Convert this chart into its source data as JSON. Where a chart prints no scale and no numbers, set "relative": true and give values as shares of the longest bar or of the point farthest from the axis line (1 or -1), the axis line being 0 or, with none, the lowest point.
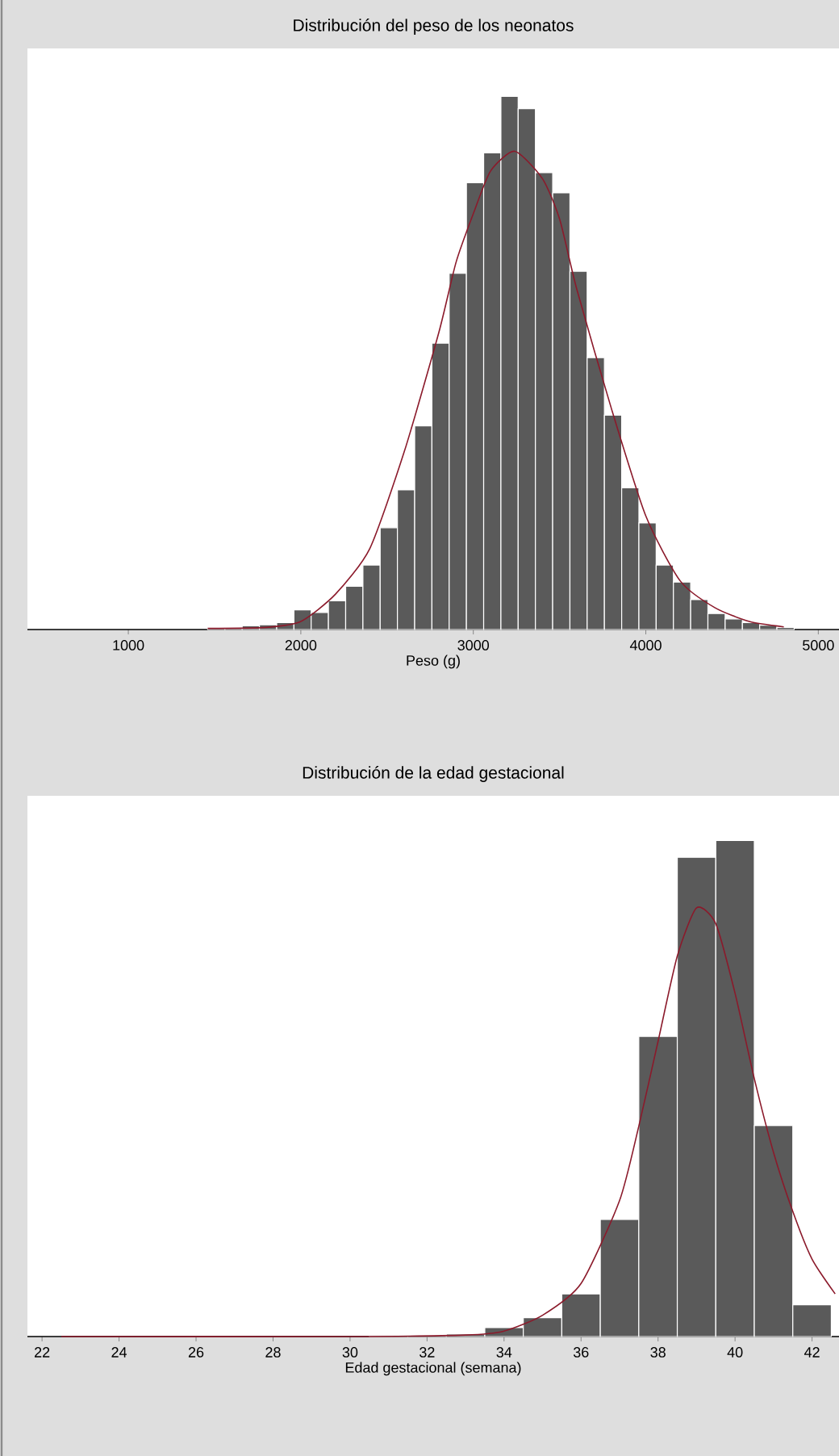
{
  "chart_data": [
    {
      "type": "histogram",
      "title": "Distribución del peso de los neonatos",
      "xlabel": "Peso (g)",
      "relative": true,
      "xlim": [
        415,
        5120
      ],
      "xticks": [
        1000,
        2000,
        3000,
        4000,
        5000
      ],
      "series": [
        {
          "color": "#5a5a5a",
          "bins": [
            1460,
            1560,
            1660,
            1760,
            1860,
            1960,
            2060,
            2160,
            2260,
            2360,
            2460,
            2560,
            2660,
            2760,
            2860,
            2960,
            3060,
            3160,
            3260,
            3360,
            3460,
            3560,
            3660,
            3760,
            3860,
            3960,
            4060,
            4160,
            4260,
            4360,
            4460,
            4560,
            4660,
            4760,
            4860
          ],
          "values": [
            0.004,
            0.004,
            0.007,
            0.009,
            0.013,
            0.037,
            0.032,
            0.054,
            0.081,
            0.121,
            0.191,
            0.262,
            0.382,
            0.537,
            0.668,
            0.838,
            0.894,
            1,
            0.977,
            0.857,
            0.819,
            0.672,
            0.51,
            0.402,
            0.266,
            0.2,
            0.121,
            0.089,
            0.056,
            0.03,
            0.02,
            0.013,
            0.008,
            0.004
          ]
        },
        {
          "type": "line",
          "color": "#8b1a2b",
          "x": [
            1460,
            1800,
            2000,
            2200,
            2400,
            2600,
            2800,
            2900,
            3000,
            3100,
            3240,
            3400,
            3500,
            3600,
            3800,
            4000,
            4200,
            4400,
            4600,
            4800
          ],
          "values": [
            0.002,
            0.004,
            0.015,
            0.066,
            0.152,
            0.334,
            0.557,
            0.689,
            0.78,
            0.86,
            0.897,
            0.846,
            0.77,
            0.638,
            0.415,
            0.213,
            0.091,
            0.041,
            0.015,
            0.005
          ]
        }
      ]
    },
    {
      "type": "histogram",
      "title": "Distribución de la edad gestacional",
      "xlabel": "Edad gestacional (semana)",
      "relative": true,
      "xlim": [
        21.62,
        42.7
      ],
      "xticks": [
        22,
        24,
        26,
        28,
        30,
        32,
        34,
        36,
        38,
        40,
        42
      ],
      "series": [
        {
          "color": "#5a5a5a",
          "bins": [
            30.5,
            31.5,
            32.5,
            33.5,
            34.5,
            35.5,
            36.5,
            37.5,
            38.5,
            39.5,
            40.5,
            41.5,
            42.5
          ],
          "values": [
            0.002,
            0.002,
            0.005,
            0.018,
            0.038,
            0.086,
            0.236,
            0.605,
            0.966,
            1,
            0.425,
            0.064
          ]
        },
        {
          "type": "line",
          "color": "#8b1a2b",
          "x": [
            22.5,
            30,
            33,
            34,
            35,
            36,
            37,
            37.5,
            38,
            38.5,
            39,
            39.5,
            40,
            40.5,
            41,
            41.5,
            42,
            42.6
          ],
          "values": [
            0,
            0,
            0.003,
            0.011,
            0.043,
            0.107,
            0.274,
            0.424,
            0.595,
            0.767,
            0.864,
            0.832,
            0.692,
            0.52,
            0.371,
            0.252,
            0.156,
            0.086
          ]
        }
      ]
    }
  ]
}
